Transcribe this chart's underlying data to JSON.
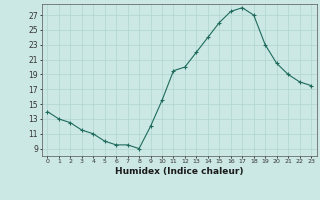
{
  "x": [
    0,
    1,
    2,
    3,
    4,
    5,
    6,
    7,
    8,
    9,
    10,
    11,
    12,
    13,
    14,
    15,
    16,
    17,
    18,
    19,
    20,
    21,
    22,
    23
  ],
  "y": [
    14,
    13,
    12.5,
    11.5,
    11,
    10,
    9.5,
    9.5,
    9,
    12,
    15.5,
    19.5,
    20,
    22,
    24,
    26,
    27.5,
    28,
    27,
    23,
    20.5,
    19,
    18,
    17.5
  ],
  "line_color": "#1e6b5e",
  "marker": "+",
  "bg_color": "#cce8e4",
  "grid_color": "#b0d4cf",
  "xlabel": "Humidex (Indice chaleur)",
  "yticks": [
    9,
    11,
    13,
    15,
    17,
    19,
    21,
    23,
    25,
    27
  ],
  "xlim": [
    -0.5,
    23.5
  ],
  "ylim": [
    8.0,
    28.5
  ]
}
